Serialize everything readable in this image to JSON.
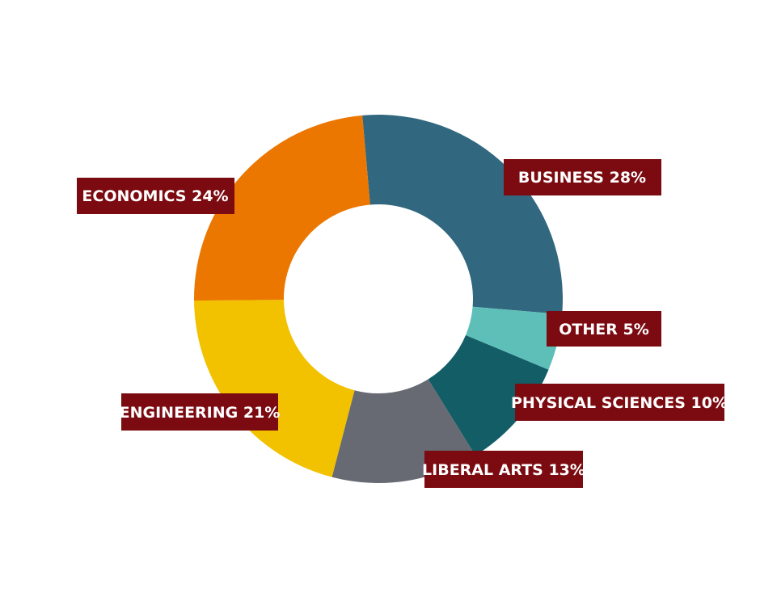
{
  "chart_data": {
    "type": "pie",
    "variant": "donut",
    "title": "",
    "legend": "none",
    "label_color": "#7b0b10",
    "slices": [
      {
        "label": "BUSINESS 28%",
        "category": "BUSINESS",
        "value": 28,
        "color": "#31677f"
      },
      {
        "label": "OTHER 5%",
        "category": "OTHER",
        "value": 5,
        "color": "#5ebfb9"
      },
      {
        "label": "PHYSICAL SCIENCES 10%",
        "category": "PHYSICAL SCIENCES",
        "value": 10,
        "color": "#135d66"
      },
      {
        "label": "LIBERAL ARTS 13%",
        "category": "LIBERAL ARTS",
        "value": 13,
        "color": "#676a73"
      },
      {
        "label": "ENGINEERING 21%",
        "category": "ENGINEERING",
        "value": 21,
        "color": "#f2c100"
      },
      {
        "label": "ECONOMICS 24%",
        "category": "ECONOMICS",
        "value": 24,
        "color": "#ec7700"
      }
    ]
  }
}
